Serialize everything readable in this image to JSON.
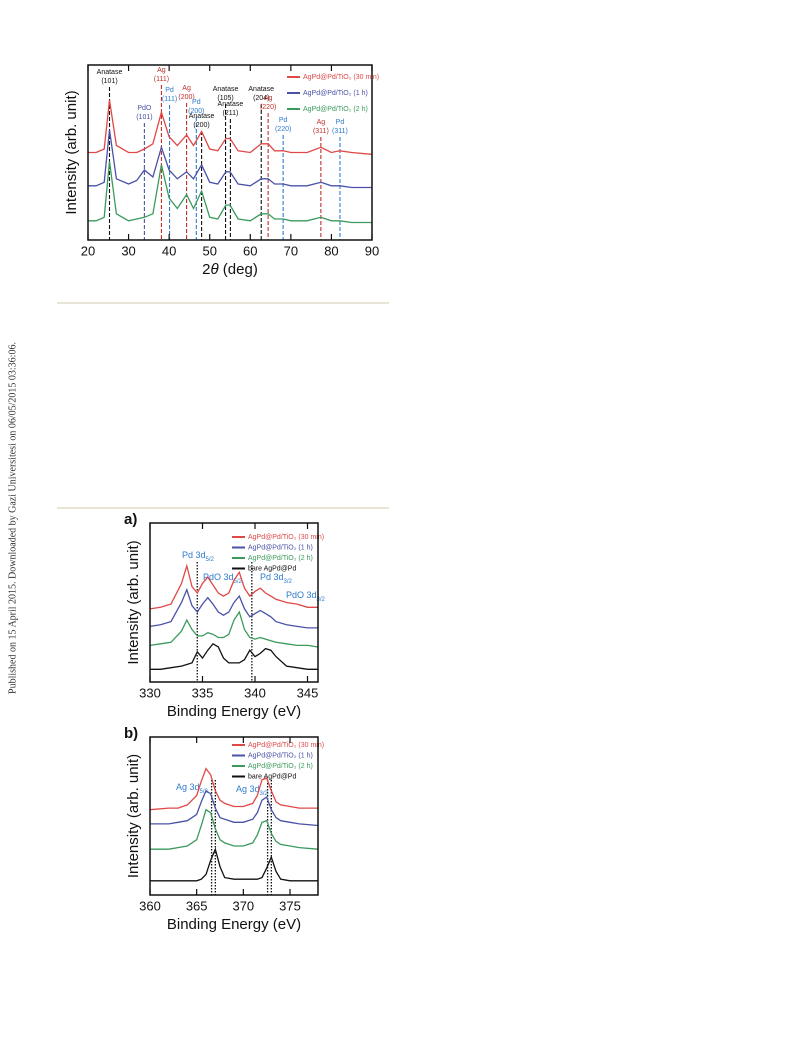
{
  "side_note": "Published on 15 April 2015. Downloaded by Gazi Universitesi on 06/05/2015 03:36:06.",
  "chart_data": [
    {
      "type": "line",
      "x_label_pre": "2",
      "x_label_sym": "θ",
      "x_label_post": " (deg)",
      "y_label": "Intensity (arb. unit)",
      "xlim": [
        20,
        90
      ],
      "xticks": [
        20,
        30,
        40,
        50,
        60,
        70,
        80,
        90
      ],
      "ylim": [
        0,
        10
      ],
      "x": [
        20,
        22,
        24,
        25.3,
        27,
        30,
        32,
        33.9,
        36,
        38.1,
        40,
        42,
        44.3,
        46,
        48,
        50,
        52,
        54,
        55,
        57,
        60,
        62.7,
        64.4,
        66,
        68.1,
        70,
        74,
        77.4,
        80,
        82.1,
        85,
        90
      ],
      "series": [
        {
          "name": "AgPd@Pd/TiO₂ (30 min)",
          "color": "#e04848",
          "values": [
            5.0,
            5.0,
            5.2,
            8.0,
            5.4,
            5.0,
            5.0,
            5.2,
            5.5,
            7.3,
            5.9,
            5.4,
            6.0,
            5.4,
            6.2,
            5.2,
            5.1,
            5.8,
            5.8,
            5.1,
            5.0,
            5.5,
            5.5,
            5.1,
            5.1,
            5.0,
            5.0,
            5.3,
            5.0,
            5.1,
            5.0,
            4.9
          ]
        },
        {
          "name": "AgPd@Pd/TiO₂ (1 h)",
          "color": "#4a52a8",
          "values": [
            3.1,
            3.1,
            3.3,
            6.3,
            3.5,
            3.2,
            3.4,
            4.0,
            3.6,
            5.3,
            4.0,
            3.5,
            3.9,
            3.5,
            4.3,
            3.3,
            3.2,
            3.9,
            3.9,
            3.2,
            3.1,
            3.5,
            3.5,
            3.2,
            3.2,
            3.1,
            3.1,
            3.3,
            3.1,
            3.1,
            3.0,
            3.0
          ]
        },
        {
          "name": "AgPd@Pd/TiO₂ (2 h)",
          "color": "#3a9a5c",
          "values": [
            1.1,
            1.1,
            1.3,
            4.5,
            1.5,
            1.1,
            1.2,
            1.3,
            1.5,
            4.3,
            2.4,
            1.8,
            2.6,
            1.8,
            2.8,
            1.3,
            1.2,
            2.0,
            2.0,
            1.2,
            1.1,
            1.5,
            1.5,
            1.2,
            1.2,
            1.1,
            1.1,
            1.3,
            1.1,
            1.1,
            1.0,
            1.0
          ]
        }
      ],
      "annotations": [
        {
          "x": 25.3,
          "name": "Anatase",
          "hkl": "(101)",
          "color": "#111111"
        },
        {
          "x": 33.9,
          "name": "PdO",
          "hkl": "(101)",
          "color": "#4a52a8"
        },
        {
          "x": 38.1,
          "name": "Ag",
          "hkl": "(111)",
          "color": "#c0302c"
        },
        {
          "x": 40.1,
          "name": "Pd",
          "hkl": "(111)",
          "color": "#2e7bcf"
        },
        {
          "x": 44.3,
          "name": "Ag",
          "hkl": "(200)",
          "color": "#c0302c"
        },
        {
          "x": 46.7,
          "name": "Pd",
          "hkl": "(200)",
          "color": "#2e7bcf"
        },
        {
          "x": 48.0,
          "name": "Anatase",
          "hkl": "(200)",
          "color": "#111111"
        },
        {
          "x": 53.9,
          "name": "Anatase",
          "hkl": "(105)",
          "color": "#111111"
        },
        {
          "x": 55.1,
          "name": "Anatase",
          "hkl": "(211)",
          "color": "#111111"
        },
        {
          "x": 62.7,
          "name": "Anatase",
          "hkl": "(204)",
          "color": "#111111"
        },
        {
          "x": 64.4,
          "name": "Ag",
          "hkl": "(220)",
          "color": "#c0302c"
        },
        {
          "x": 68.1,
          "name": "Pd",
          "hkl": "(220)",
          "color": "#2e7bcf"
        },
        {
          "x": 77.4,
          "name": "Ag",
          "hkl": "(311)",
          "color": "#c0302c"
        },
        {
          "x": 82.1,
          "name": "Pd",
          "hkl": "(311)",
          "color": "#2e7bcf"
        }
      ]
    },
    {
      "type": "line",
      "panel": "a)",
      "x_label": "Binding Energy (eV)",
      "y_label": "Intensity (arb. unit)",
      "xlim": [
        330,
        346
      ],
      "xticks": [
        330,
        335,
        340,
        345
      ],
      "ylim": [
        0,
        10
      ],
      "x": [
        330,
        331,
        332,
        333,
        333.5,
        334,
        334.5,
        335,
        335.5,
        336,
        336.5,
        337,
        337.5,
        338,
        338.5,
        339,
        339.5,
        340,
        340.5,
        341,
        341.5,
        342,
        343,
        344,
        345,
        346
      ],
      "series": [
        {
          "name": "AgPd@Pd/TiO₂ (30 min)",
          "color": "#e04848",
          "values": [
            4.6,
            4.7,
            4.9,
            6.2,
            7.3,
            6.0,
            5.6,
            6.2,
            6.6,
            6.1,
            5.6,
            5.4,
            5.6,
            6.4,
            6.9,
            5.9,
            5.4,
            5.7,
            5.9,
            5.6,
            5.4,
            5.2,
            5.0,
            4.9,
            4.7,
            4.7
          ]
        },
        {
          "name": "AgPd@Pd/TiO₂ (1 h)",
          "color": "#4a52a8",
          "values": [
            3.5,
            3.6,
            3.8,
            5.0,
            5.8,
            4.8,
            4.4,
            4.9,
            5.3,
            4.9,
            4.4,
            4.2,
            4.4,
            5.0,
            5.4,
            4.6,
            4.1,
            4.3,
            4.5,
            4.3,
            4.1,
            3.8,
            3.6,
            3.5,
            3.4,
            3.4
          ]
        },
        {
          "name": "AgPd@Pd/TiO₂ (2 h)",
          "color": "#3a9a5c",
          "values": [
            2.3,
            2.4,
            2.5,
            3.2,
            3.9,
            3.3,
            2.9,
            2.9,
            3.1,
            3.0,
            2.8,
            2.8,
            3.0,
            3.9,
            4.4,
            3.3,
            2.8,
            2.7,
            2.8,
            2.7,
            2.6,
            2.5,
            2.4,
            2.3,
            2.3,
            2.2
          ]
        },
        {
          "name": "bare AgPd@Pd",
          "color": "#111111",
          "values": [
            0.8,
            0.8,
            0.9,
            1.0,
            1.1,
            1.2,
            1.9,
            1.5,
            2.0,
            2.4,
            2.2,
            1.5,
            1.2,
            1.2,
            1.2,
            1.4,
            2.0,
            1.6,
            1.8,
            2.1,
            2.0,
            1.6,
            1.0,
            0.9,
            0.8,
            0.8
          ]
        }
      ],
      "reference_lines": [
        334.5,
        339.7
      ],
      "annotations": [
        {
          "text": "Pd 3d",
          "sub": "5/2",
          "color": "#2e7bcf"
        },
        {
          "text": "PdO 3d",
          "sub": "5/2",
          "color": "#2e7bcf"
        },
        {
          "text": "Pd 3d",
          "sub": "3/2",
          "color": "#2e7bcf"
        },
        {
          "text": "PdO 3d",
          "sub": "3/2",
          "color": "#2e7bcf"
        }
      ]
    },
    {
      "type": "line",
      "panel": "b)",
      "x_label": "Binding Energy (eV)",
      "y_label": "Intensity (arb. unit)",
      "xlim": [
        360,
        378
      ],
      "xticks": [
        360,
        365,
        370,
        375
      ],
      "ylim": [
        0,
        10
      ],
      "x": [
        360,
        362,
        363,
        364,
        365,
        365.5,
        366,
        366.5,
        367,
        367.5,
        368,
        369,
        370,
        371,
        371.5,
        372,
        372.5,
        373,
        373.5,
        374,
        375,
        376,
        378
      ],
      "series": [
        {
          "name": "AgPd@Pd/TiO₂ (30 min)",
          "color": "#e04848",
          "values": [
            5.4,
            5.5,
            5.5,
            5.7,
            6.3,
            7.2,
            8.0,
            7.6,
            6.6,
            6.0,
            5.8,
            5.6,
            5.6,
            5.8,
            6.3,
            7.3,
            7.4,
            6.6,
            5.9,
            5.7,
            5.6,
            5.5,
            5.5
          ]
        },
        {
          "name": "AgPd@Pd/TiO₂ (1 h)",
          "color": "#4a52a8",
          "values": [
            4.5,
            4.5,
            4.6,
            4.7,
            5.1,
            5.9,
            6.6,
            6.4,
            5.5,
            4.9,
            4.8,
            4.6,
            4.6,
            4.8,
            5.2,
            6.0,
            6.2,
            5.4,
            4.9,
            4.7,
            4.6,
            4.5,
            4.4
          ]
        },
        {
          "name": "AgPd@Pd/TiO₂ (2 h)",
          "color": "#3a9a5c",
          "values": [
            2.9,
            2.9,
            3.0,
            3.1,
            3.5,
            4.4,
            5.4,
            5.2,
            4.2,
            3.5,
            3.3,
            3.1,
            3.1,
            3.3,
            3.8,
            4.6,
            4.7,
            3.9,
            3.4,
            3.2,
            3.1,
            3.0,
            2.9
          ]
        },
        {
          "name": "bare AgPd@Pd",
          "color": "#111111",
          "values": [
            0.9,
            0.9,
            0.9,
            0.9,
            0.9,
            1.0,
            1.3,
            2.2,
            2.9,
            1.8,
            1.1,
            1.0,
            1.0,
            1.0,
            1.0,
            1.1,
            1.7,
            2.4,
            1.5,
            1.0,
            0.9,
            0.9,
            0.9
          ]
        }
      ],
      "reference_lines": [
        366.6,
        367.0,
        372.6,
        373.0
      ],
      "annotations": [
        {
          "text": "Ag 3d",
          "sub": "5/2",
          "color": "#2e7bcf"
        },
        {
          "text": "Ag 3d",
          "sub": "3/2",
          "color": "#2e7bcf"
        }
      ]
    }
  ]
}
